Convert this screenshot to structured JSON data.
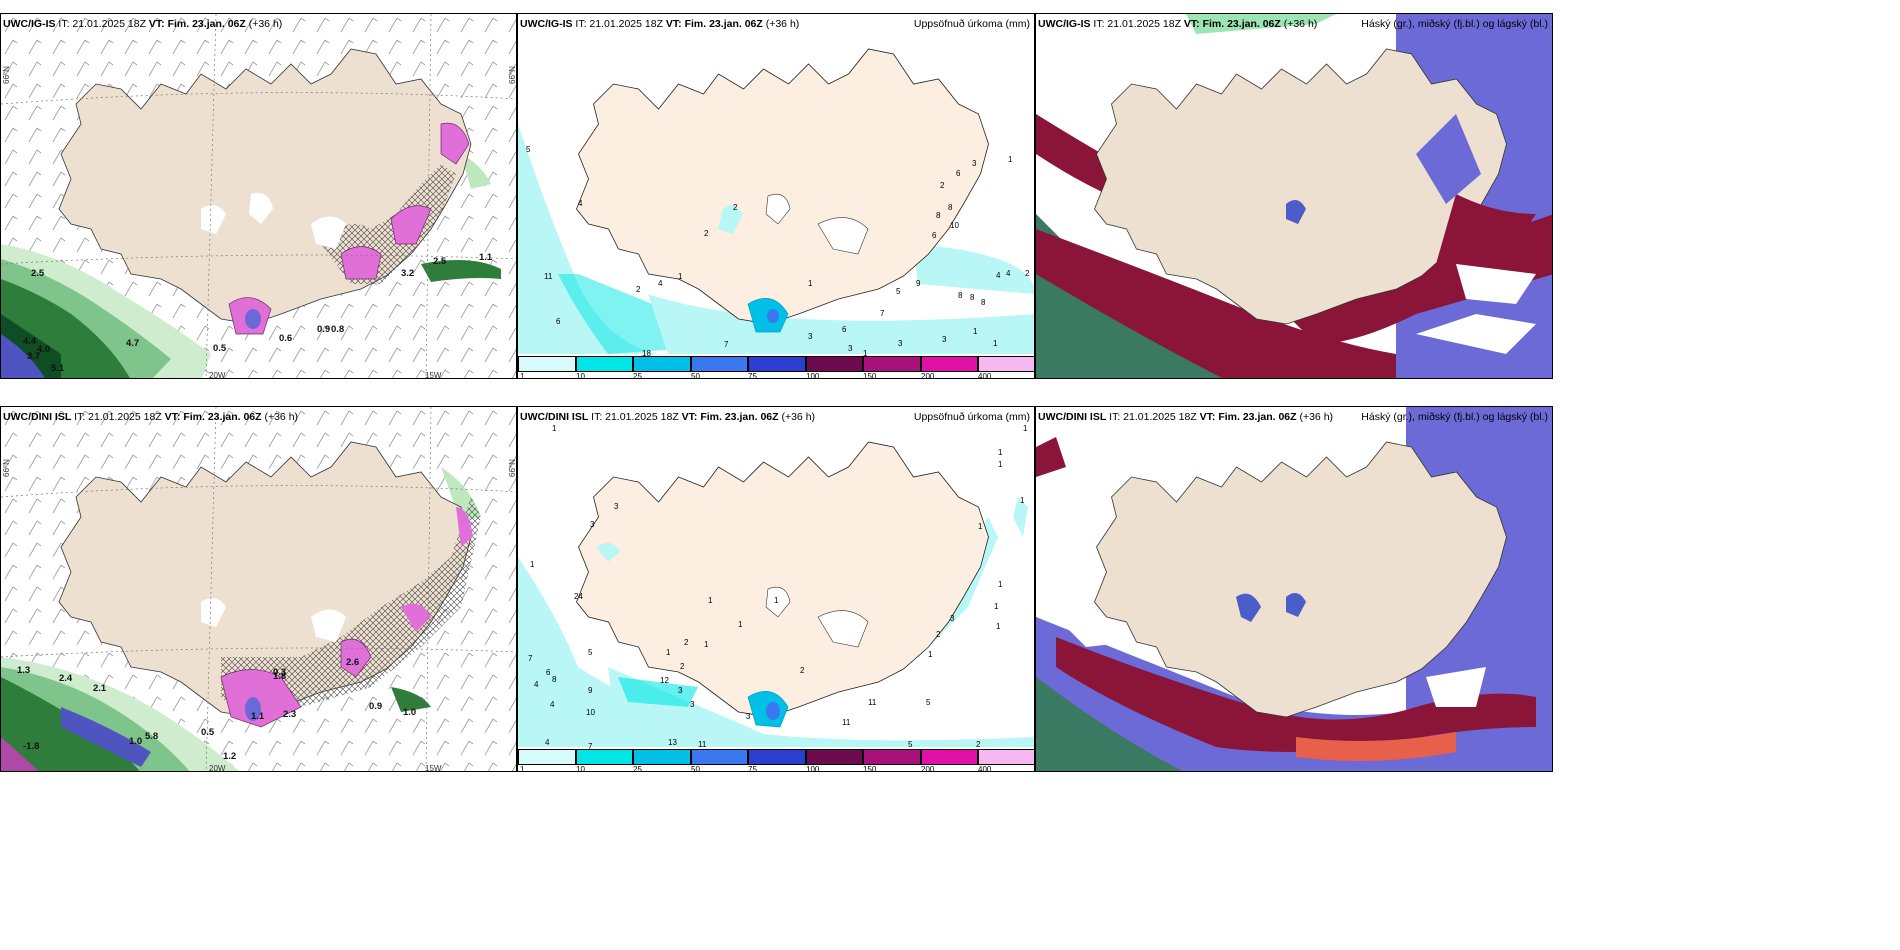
{
  "panels": {
    "p1": {
      "model": "UWC/IG-IS",
      "it": "IT: 21.01.2025 18Z",
      "vt_label": "VT:",
      "vt": "Fim. 23.jan. 06Z",
      "lead": "(+36 h)",
      "right": ""
    },
    "p2": {
      "model": "UWC/IG-IS",
      "it": "IT: 21.01.2025 18Z",
      "vt_label": "VT:",
      "vt": "Fim. 23.jan. 06Z",
      "lead": "(+36 h)",
      "right": "Uppsöfnuð úrkoma (mm)"
    },
    "p3": {
      "model": "UWC/IG-IS",
      "it": "IT: 21.01.2025 18Z",
      "vt_label": "VT:",
      "vt": "Fim. 23.jan. 06Z",
      "lead": "(+36 h)",
      "right": "Háský (gr.), miðský (fj.bl.) og lágský (bl.)"
    },
    "p4": {
      "model": "UWC/DINI ISL",
      "it": "IT: 21.01.2025 18Z",
      "vt_label": "VT:",
      "vt": "Fim. 23.jan. 06Z",
      "lead": "(+36 h)",
      "right": ""
    },
    "p5": {
      "model": "UWC/DINI ISL",
      "it": "IT: 21.01.2025 18Z",
      "vt_label": "VT:",
      "vt": "Fim. 23.jan. 06Z",
      "lead": "(+36 h)",
      "right": "Uppsöfnuð úrkoma (mm)"
    },
    "p6": {
      "model": "UWC/DINI ISL",
      "it": "IT: 21.01.2025 18Z",
      "vt_label": "VT:",
      "vt": "Fim. 23.jan. 06Z",
      "lead": "(+36 h)",
      "right": "Háský (gr.), miðský (fj.bl.) og lágský (bl.)"
    }
  },
  "axes": {
    "lat66": "66°N",
    "lon20": "20W",
    "lon15": "15W"
  },
  "legend": {
    "ticks": [
      "1",
      "10",
      "25",
      "50",
      "75",
      "100",
      "150",
      "200",
      "400"
    ],
    "colors": [
      "#d7fbfb",
      "#00e6e6",
      "#00c0e8",
      "#3a78f0",
      "#2a3fd0",
      "#6e0a4e",
      "#a8107a",
      "#e010a8",
      "#f6b8f0"
    ]
  },
  "colors": {
    "land": "#f3e7d8",
    "precip_light": "#b8f7f5",
    "snow_pink": "#e070d8",
    "rain_green": "#2e7d3a",
    "high_cloud": "#8a1538",
    "mid_cloud": "#6c6ad6",
    "low_cloud": "#4a5dc8",
    "sea_green": "#3b7a62"
  },
  "p1_labels": [
    "2.5",
    "4.7",
    "4.4",
    "4.0",
    "3.7",
    "5.1",
    "0.6",
    "0.8",
    "0.9",
    "3.2",
    "2.5",
    "1.1",
    "0.5"
  ],
  "p4_labels": [
    "1.3",
    "2.4",
    "2.1",
    "1.8",
    "0.3",
    "2.3",
    "1.1",
    "2.6",
    "0.9",
    "1.0",
    "1.0",
    "5.8",
    "1.2",
    "-1.8",
    "0.5"
  ],
  "p2_labels": [
    "5",
    "4",
    "2",
    "2",
    "1",
    "11",
    "6",
    "2",
    "4",
    "1",
    "1",
    "3",
    "6",
    "8",
    "10",
    "8",
    "2",
    "4",
    "6",
    "5",
    "9",
    "7",
    "6",
    "3",
    "3",
    "3",
    "8",
    "8",
    "8",
    "4",
    "2",
    "1",
    "1",
    "3",
    "1",
    "18",
    "7"
  ],
  "p5_labels": [
    "1",
    "1",
    "1",
    "1",
    "1",
    "1",
    "3",
    "3",
    "24",
    "1",
    "7",
    "4",
    "8",
    "6",
    "5",
    "9",
    "4",
    "10",
    "2",
    "1",
    "2",
    "12",
    "3",
    "3",
    "1",
    "1",
    "2",
    "3",
    "11",
    "11",
    "5",
    "4",
    "7",
    "11",
    "13",
    "5",
    "2",
    "1",
    "1",
    "1",
    "3",
    "2",
    "1",
    "1",
    "1",
    "1"
  ]
}
